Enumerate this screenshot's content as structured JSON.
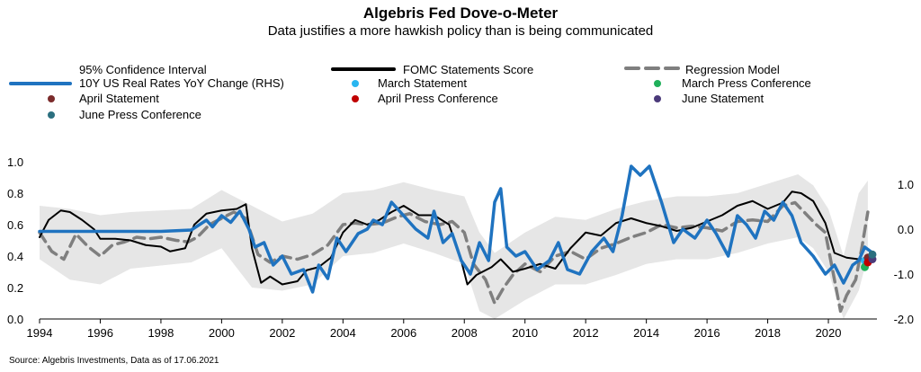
{
  "title": "Algebris Fed Dove-o-Meter",
  "subtitle": "Data justifies a more hawkish policy than is being communicated",
  "source": "Source: Algebris Investments, Data as of 17.06.2021",
  "legend": {
    "ci": "95% Confidence Interval",
    "fomc": "FOMC Statements Score",
    "regression": "Regression Model",
    "real_rates": "10Y US Real Rates YoY Change (RHS)",
    "march_statement": "March Statement",
    "march_press": "March Press Conference",
    "april_statement": "April Statement",
    "april_press": "April Press Conference",
    "june_statement": "June Statement",
    "june_press": "June Press Conference"
  },
  "colors": {
    "fomc": "#000000",
    "regression": "#7f7f7f",
    "real_rates": "#1f73c0",
    "ci": "#e6e6e6",
    "march_statement": "#29b6f0",
    "march_press": "#1fb05a",
    "april_statement": "#7b2b2b",
    "april_press": "#c00000",
    "june_statement": "#4b3a7a",
    "june_press": "#2b6f7f"
  },
  "chart_data": {
    "type": "line",
    "xlim": [
      1994,
      2021.6
    ],
    "ylim_left": [
      0.0,
      1.0
    ],
    "ylim_right": [
      -2.0,
      1.5
    ],
    "x_ticks": [
      "1994",
      "1996",
      "1998",
      "2000",
      "2002",
      "2004",
      "2006",
      "2008",
      "2010",
      "2012",
      "2014",
      "2016",
      "2018",
      "2020"
    ],
    "y_left_ticks": [
      "0.0",
      "0.2",
      "0.4",
      "0.6",
      "0.8",
      "1.0"
    ],
    "y_right_ticks": [
      "-2.0",
      "-1.0",
      "0.0",
      "1.0"
    ],
    "series": [
      {
        "name": "FOMC Statements Score",
        "axis": "left",
        "points": [
          [
            1994.0,
            0.52
          ],
          [
            1994.3,
            0.63
          ],
          [
            1994.7,
            0.69
          ],
          [
            1995.0,
            0.68
          ],
          [
            1995.4,
            0.63
          ],
          [
            1995.8,
            0.57
          ],
          [
            1996.0,
            0.51
          ],
          [
            1996.5,
            0.51
          ],
          [
            1997.0,
            0.5
          ],
          [
            1997.5,
            0.47
          ],
          [
            1998.0,
            0.46
          ],
          [
            1998.3,
            0.43
          ],
          [
            1998.8,
            0.45
          ],
          [
            1999.1,
            0.6
          ],
          [
            1999.5,
            0.67
          ],
          [
            2000.0,
            0.69
          ],
          [
            2000.5,
            0.7
          ],
          [
            2000.8,
            0.73
          ],
          [
            2001.0,
            0.45
          ],
          [
            2001.3,
            0.23
          ],
          [
            2001.6,
            0.27
          ],
          [
            2002.0,
            0.22
          ],
          [
            2002.5,
            0.24
          ],
          [
            2002.8,
            0.31
          ],
          [
            2003.2,
            0.33
          ],
          [
            2003.6,
            0.39
          ],
          [
            2004.0,
            0.55
          ],
          [
            2004.4,
            0.63
          ],
          [
            2004.8,
            0.6
          ],
          [
            2005.2,
            0.63
          ],
          [
            2005.6,
            0.68
          ],
          [
            2006.0,
            0.72
          ],
          [
            2006.5,
            0.66
          ],
          [
            2007.0,
            0.66
          ],
          [
            2007.5,
            0.6
          ],
          [
            2007.9,
            0.37
          ],
          [
            2008.1,
            0.22
          ],
          [
            2008.4,
            0.28
          ],
          [
            2008.9,
            0.33
          ],
          [
            2009.2,
            0.38
          ],
          [
            2009.6,
            0.3
          ],
          [
            2010.0,
            0.32
          ],
          [
            2010.5,
            0.35
          ],
          [
            2011.0,
            0.32
          ],
          [
            2011.5,
            0.45
          ],
          [
            2012.0,
            0.55
          ],
          [
            2012.5,
            0.53
          ],
          [
            2013.0,
            0.61
          ],
          [
            2013.5,
            0.64
          ],
          [
            2014.0,
            0.61
          ],
          [
            2014.5,
            0.59
          ],
          [
            2015.0,
            0.56
          ],
          [
            2015.5,
            0.58
          ],
          [
            2016.0,
            0.62
          ],
          [
            2016.5,
            0.66
          ],
          [
            2017.0,
            0.72
          ],
          [
            2017.5,
            0.75
          ],
          [
            2018.0,
            0.7
          ],
          [
            2018.5,
            0.74
          ],
          [
            2018.8,
            0.81
          ],
          [
            2019.1,
            0.8
          ],
          [
            2019.5,
            0.75
          ],
          [
            2019.9,
            0.61
          ],
          [
            2020.2,
            0.42
          ],
          [
            2020.6,
            0.39
          ],
          [
            2021.0,
            0.38
          ],
          [
            2021.3,
            0.38
          ]
        ]
      },
      {
        "name": "Regression Model",
        "axis": "left",
        "points": [
          [
            1994.0,
            0.55
          ],
          [
            1994.4,
            0.43
          ],
          [
            1994.8,
            0.38
          ],
          [
            1995.2,
            0.54
          ],
          [
            1995.6,
            0.46
          ],
          [
            1996.0,
            0.4
          ],
          [
            1996.4,
            0.47
          ],
          [
            1996.8,
            0.49
          ],
          [
            1997.2,
            0.52
          ],
          [
            1997.6,
            0.51
          ],
          [
            1998.0,
            0.52
          ],
          [
            1998.5,
            0.5
          ],
          [
            1998.9,
            0.49
          ],
          [
            1999.2,
            0.52
          ],
          [
            1999.6,
            0.6
          ],
          [
            2000.0,
            0.64
          ],
          [
            2000.4,
            0.68
          ],
          [
            2000.8,
            0.64
          ],
          [
            2001.2,
            0.41
          ],
          [
            2001.6,
            0.36
          ],
          [
            2002.0,
            0.4
          ],
          [
            2002.5,
            0.38
          ],
          [
            2003.0,
            0.41
          ],
          [
            2003.5,
            0.47
          ],
          [
            2004.0,
            0.6
          ],
          [
            2004.4,
            0.61
          ],
          [
            2004.8,
            0.6
          ],
          [
            2005.3,
            0.61
          ],
          [
            2005.8,
            0.65
          ],
          [
            2006.2,
            0.67
          ],
          [
            2006.7,
            0.62
          ],
          [
            2007.2,
            0.6
          ],
          [
            2007.6,
            0.62
          ],
          [
            2008.0,
            0.55
          ],
          [
            2008.3,
            0.35
          ],
          [
            2008.7,
            0.25
          ],
          [
            2009.0,
            0.1
          ],
          [
            2009.3,
            0.2
          ],
          [
            2009.6,
            0.28
          ],
          [
            2010.0,
            0.35
          ],
          [
            2010.5,
            0.3
          ],
          [
            2011.0,
            0.4
          ],
          [
            2011.5,
            0.43
          ],
          [
            2012.0,
            0.38
          ],
          [
            2012.5,
            0.45
          ],
          [
            2013.0,
            0.48
          ],
          [
            2013.5,
            0.52
          ],
          [
            2014.0,
            0.55
          ],
          [
            2014.5,
            0.6
          ],
          [
            2015.0,
            0.58
          ],
          [
            2015.5,
            0.59
          ],
          [
            2016.0,
            0.58
          ],
          [
            2016.5,
            0.56
          ],
          [
            2017.0,
            0.62
          ],
          [
            2017.5,
            0.63
          ],
          [
            2018.0,
            0.62
          ],
          [
            2018.5,
            0.72
          ],
          [
            2018.9,
            0.74
          ],
          [
            2019.2,
            0.68
          ],
          [
            2019.6,
            0.6
          ],
          [
            2019.9,
            0.55
          ],
          [
            2020.2,
            0.25
          ],
          [
            2020.4,
            0.05
          ],
          [
            2020.6,
            0.15
          ],
          [
            2020.9,
            0.25
          ],
          [
            2021.1,
            0.45
          ],
          [
            2021.3,
            0.68
          ]
        ]
      },
      {
        "name": "10Y US Real Rates YoY Change (RHS)",
        "axis": "right",
        "points": [
          [
            1994.0,
            -0.05
          ],
          [
            1995.0,
            -0.05
          ],
          [
            1996.0,
            -0.05
          ],
          [
            1997.0,
            -0.05
          ],
          [
            1998.0,
            -0.05
          ],
          [
            1999.0,
            -0.02
          ],
          [
            1999.5,
            0.2
          ],
          [
            1999.7,
            0.05
          ],
          [
            2000.0,
            0.3
          ],
          [
            2000.3,
            0.15
          ],
          [
            2000.6,
            0.4
          ],
          [
            2000.9,
            0.0
          ],
          [
            2001.1,
            -0.4
          ],
          [
            2001.4,
            -0.3
          ],
          [
            2001.7,
            -0.8
          ],
          [
            2002.0,
            -0.6
          ],
          [
            2002.3,
            -1.0
          ],
          [
            2002.7,
            -0.9
          ],
          [
            2003.0,
            -1.4
          ],
          [
            2003.2,
            -0.8
          ],
          [
            2003.5,
            -1.1
          ],
          [
            2003.8,
            -0.2
          ],
          [
            2004.1,
            -0.5
          ],
          [
            2004.5,
            -0.1
          ],
          [
            2004.8,
            0.0
          ],
          [
            2005.0,
            0.2
          ],
          [
            2005.3,
            0.1
          ],
          [
            2005.6,
            0.6
          ],
          [
            2006.0,
            0.3
          ],
          [
            2006.4,
            0.0
          ],
          [
            2006.8,
            -0.2
          ],
          [
            2007.0,
            0.4
          ],
          [
            2007.3,
            -0.3
          ],
          [
            2007.6,
            -0.1
          ],
          [
            2007.9,
            -0.7
          ],
          [
            2008.2,
            -1.0
          ],
          [
            2008.5,
            -0.3
          ],
          [
            2008.8,
            -0.7
          ],
          [
            2009.0,
            0.6
          ],
          [
            2009.2,
            0.9
          ],
          [
            2009.4,
            -0.4
          ],
          [
            2009.7,
            -0.6
          ],
          [
            2010.0,
            -0.5
          ],
          [
            2010.4,
            -0.9
          ],
          [
            2010.8,
            -0.7
          ],
          [
            2011.1,
            -0.3
          ],
          [
            2011.4,
            -0.9
          ],
          [
            2011.8,
            -1.0
          ],
          [
            2012.2,
            -0.5
          ],
          [
            2012.6,
            -0.2
          ],
          [
            2012.9,
            -0.5
          ],
          [
            2013.2,
            0.3
          ],
          [
            2013.5,
            1.4
          ],
          [
            2013.8,
            1.2
          ],
          [
            2014.1,
            1.4
          ],
          [
            2014.5,
            0.6
          ],
          [
            2014.9,
            -0.3
          ],
          [
            2015.2,
            0.0
          ],
          [
            2015.6,
            -0.2
          ],
          [
            2016.0,
            0.2
          ],
          [
            2016.3,
            -0.1
          ],
          [
            2016.7,
            -0.6
          ],
          [
            2017.0,
            0.3
          ],
          [
            2017.3,
            0.1
          ],
          [
            2017.6,
            -0.2
          ],
          [
            2017.9,
            0.4
          ],
          [
            2018.2,
            0.2
          ],
          [
            2018.5,
            0.6
          ],
          [
            2018.8,
            0.3
          ],
          [
            2019.1,
            -0.3
          ],
          [
            2019.5,
            -0.6
          ],
          [
            2019.9,
            -1.0
          ],
          [
            2020.2,
            -0.8
          ],
          [
            2020.5,
            -1.2
          ],
          [
            2020.8,
            -0.8
          ],
          [
            2021.0,
            -0.7
          ],
          [
            2021.2,
            -0.4
          ],
          [
            2021.4,
            -0.5
          ]
        ]
      }
    ],
    "confidence_interval": {
      "name": "95% Confidence Interval",
      "axis": "left",
      "upper": [
        [
          1994.0,
          0.72
        ],
        [
          1995.0,
          0.7
        ],
        [
          1996.0,
          0.66
        ],
        [
          1997.0,
          0.68
        ],
        [
          1998.0,
          0.69
        ],
        [
          1999.0,
          0.7
        ],
        [
          2000.0,
          0.82
        ],
        [
          2001.0,
          0.72
        ],
        [
          2002.0,
          0.62
        ],
        [
          2003.0,
          0.67
        ],
        [
          2004.0,
          0.8
        ],
        [
          2005.0,
          0.82
        ],
        [
          2006.0,
          0.87
        ],
        [
          2007.0,
          0.82
        ],
        [
          2008.0,
          0.78
        ],
        [
          2008.5,
          0.55
        ],
        [
          2009.0,
          0.42
        ],
        [
          2010.0,
          0.55
        ],
        [
          2011.0,
          0.65
        ],
        [
          2012.0,
          0.63
        ],
        [
          2013.0,
          0.7
        ],
        [
          2014.0,
          0.75
        ],
        [
          2015.0,
          0.78
        ],
        [
          2016.0,
          0.78
        ],
        [
          2017.0,
          0.8
        ],
        [
          2018.0,
          0.86
        ],
        [
          2019.0,
          0.92
        ],
        [
          2019.5,
          0.85
        ],
        [
          2020.0,
          0.7
        ],
        [
          2020.5,
          0.4
        ],
        [
          2021.0,
          0.8
        ],
        [
          2021.3,
          0.88
        ]
      ],
      "lower": [
        [
          1994.0,
          0.38
        ],
        [
          1995.0,
          0.25
        ],
        [
          1996.0,
          0.22
        ],
        [
          1997.0,
          0.32
        ],
        [
          1998.0,
          0.34
        ],
        [
          1999.0,
          0.36
        ],
        [
          2000.0,
          0.45
        ],
        [
          2001.0,
          0.2
        ],
        [
          2002.0,
          0.18
        ],
        [
          2003.0,
          0.22
        ],
        [
          2004.0,
          0.4
        ],
        [
          2005.0,
          0.42
        ],
        [
          2006.0,
          0.48
        ],
        [
          2007.0,
          0.42
        ],
        [
          2008.0,
          0.35
        ],
        [
          2008.5,
          0.05
        ],
        [
          2009.0,
          0.0
        ],
        [
          2010.0,
          0.12
        ],
        [
          2011.0,
          0.22
        ],
        [
          2012.0,
          0.22
        ],
        [
          2013.0,
          0.28
        ],
        [
          2014.0,
          0.35
        ],
        [
          2015.0,
          0.38
        ],
        [
          2016.0,
          0.38
        ],
        [
          2017.0,
          0.42
        ],
        [
          2018.0,
          0.48
        ],
        [
          2019.0,
          0.52
        ],
        [
          2019.5,
          0.45
        ],
        [
          2020.0,
          0.3
        ],
        [
          2020.5,
          0.0
        ],
        [
          2021.0,
          0.18
        ],
        [
          2021.3,
          0.4
        ]
      ]
    },
    "markers": [
      {
        "name": "March Statement",
        "color_key": "march_statement",
        "x": 2021.2,
        "y": 0.37
      },
      {
        "name": "March Press Conference",
        "color_key": "march_press",
        "x": 2021.2,
        "y": 0.33
      },
      {
        "name": "April Statement",
        "color_key": "april_statement",
        "x": 2021.3,
        "y": 0.39
      },
      {
        "name": "April Press Conference",
        "color_key": "april_press",
        "x": 2021.3,
        "y": 0.36
      },
      {
        "name": "June Statement",
        "color_key": "june_statement",
        "x": 2021.45,
        "y": 0.38
      },
      {
        "name": "June Press Conference",
        "color_key": "june_press",
        "x": 2021.45,
        "y": 0.41
      }
    ]
  }
}
